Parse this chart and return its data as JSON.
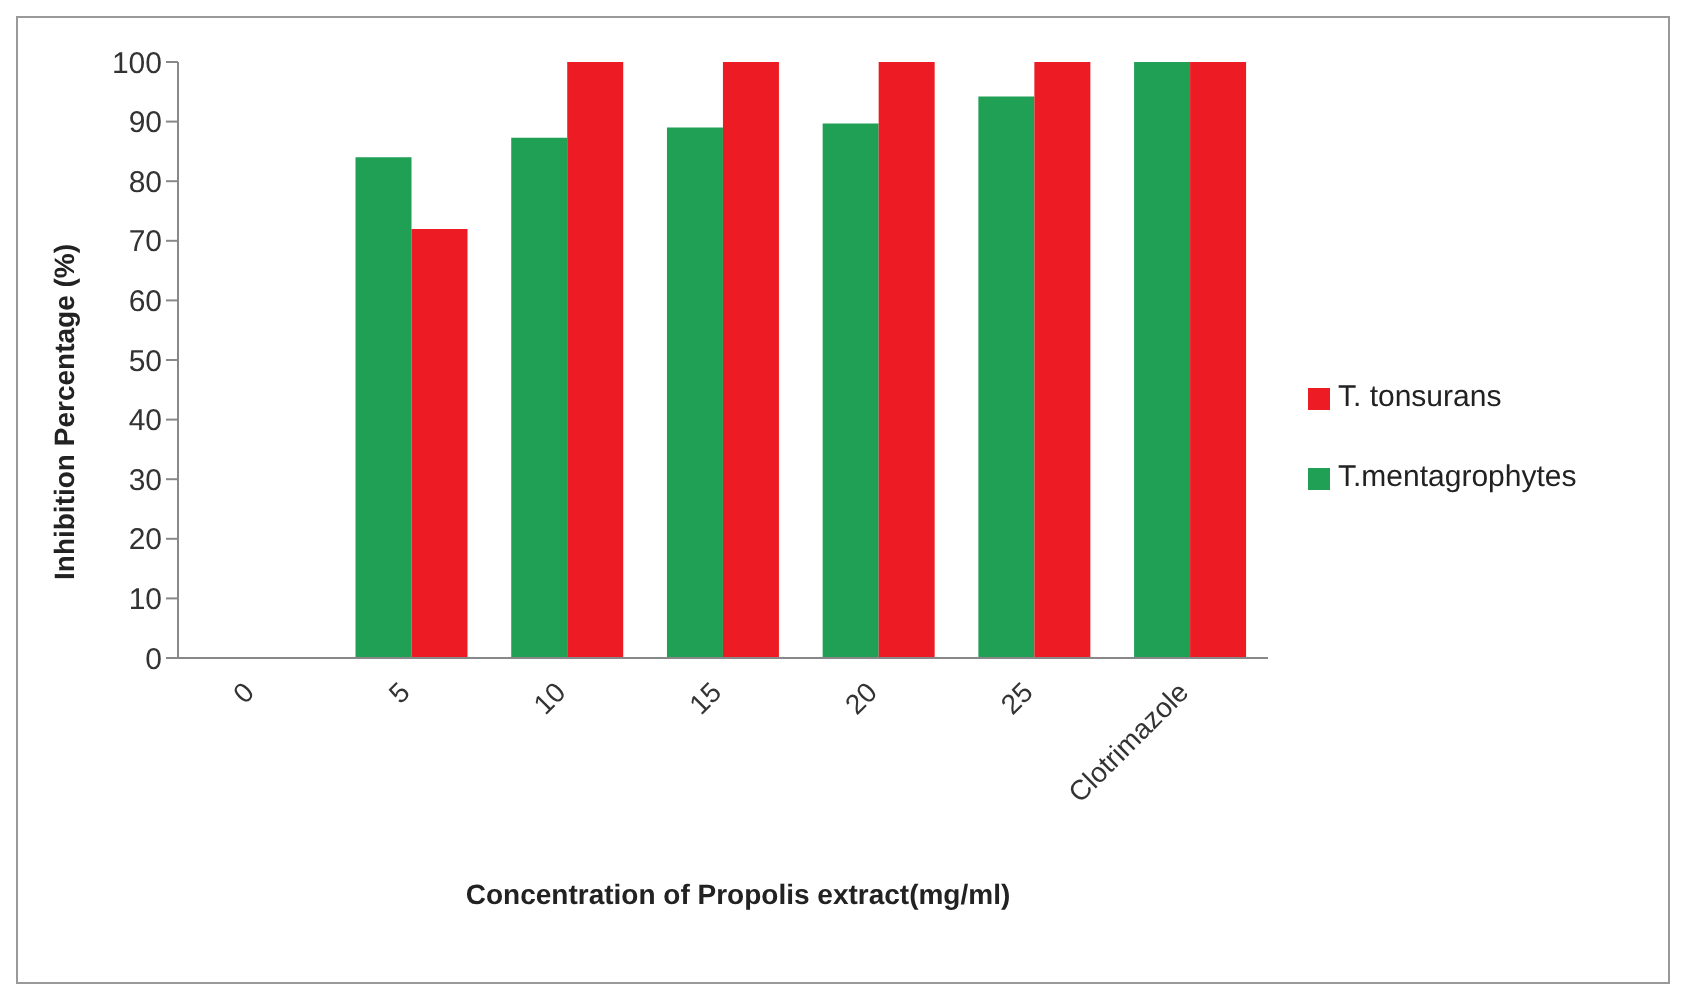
{
  "chart_data": {
    "type": "bar",
    "xlabel": "Concentration of Propolis extract(mg/ml)",
    "ylabel": "Inhibition Percentage (%)",
    "categories": [
      "0",
      "5",
      "10",
      "15",
      "20",
      "25",
      "Clotrimazole"
    ],
    "series": [
      {
        "name": "T.mentagrophytes",
        "color": "#1fa055",
        "values": [
          0,
          84,
          87.3,
          89,
          89.7,
          94.2,
          100
        ]
      },
      {
        "name": "T. tonsurans",
        "color": "#ed1c24",
        "values": [
          0,
          72,
          100,
          100,
          100,
          100,
          100
        ]
      }
    ],
    "ylim": [
      0,
      100
    ],
    "yticks": [
      0,
      10,
      20,
      30,
      40,
      50,
      60,
      70,
      80,
      90,
      100
    ],
    "grid": false,
    "legend": "right"
  }
}
